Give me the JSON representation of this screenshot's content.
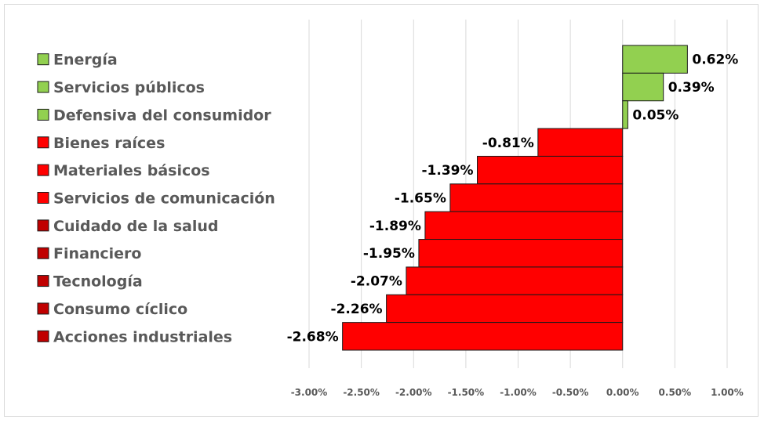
{
  "chart_data": {
    "type": "bar",
    "orientation": "horizontal",
    "title": "",
    "xlabel": "",
    "ylabel": "",
    "xlim": [
      -3.0,
      1.0
    ],
    "xticks": [
      -3.0,
      -2.5,
      -2.0,
      -1.5,
      -1.0,
      -0.5,
      0.0,
      0.5,
      1.0
    ],
    "xtick_labels": [
      "-3.00%",
      "-2.50%",
      "-2.00%",
      "-1.50%",
      "-1.00%",
      "-0.50%",
      "0.00%",
      "0.50%",
      "1.00%"
    ],
    "grid": true,
    "categories": [
      "Energía",
      "Servicios públicos",
      "Defensiva del consumidor",
      "Bienes raíces",
      "Materiales básicos",
      "Servicios de comunicación",
      "Cuidado de la salud",
      "Financiero",
      "Tecnología",
      "Consumo cíclico",
      "Acciones industriales"
    ],
    "values": [
      0.62,
      0.39,
      0.05,
      -0.81,
      -1.39,
      -1.65,
      -1.89,
      -1.95,
      -2.07,
      -2.26,
      -2.68
    ],
    "data_labels": [
      "0.62%",
      "0.39%",
      "0.05%",
      "-0.81%",
      "-1.39%",
      "-1.65%",
      "-1.89%",
      "-1.95%",
      "-2.07%",
      "-2.26%",
      "-2.68%"
    ],
    "colors": {
      "positive": "#92d050",
      "negative": "#ff0000",
      "grid": "#d9d9d9",
      "legend_dark_red": "#c00000"
    }
  }
}
